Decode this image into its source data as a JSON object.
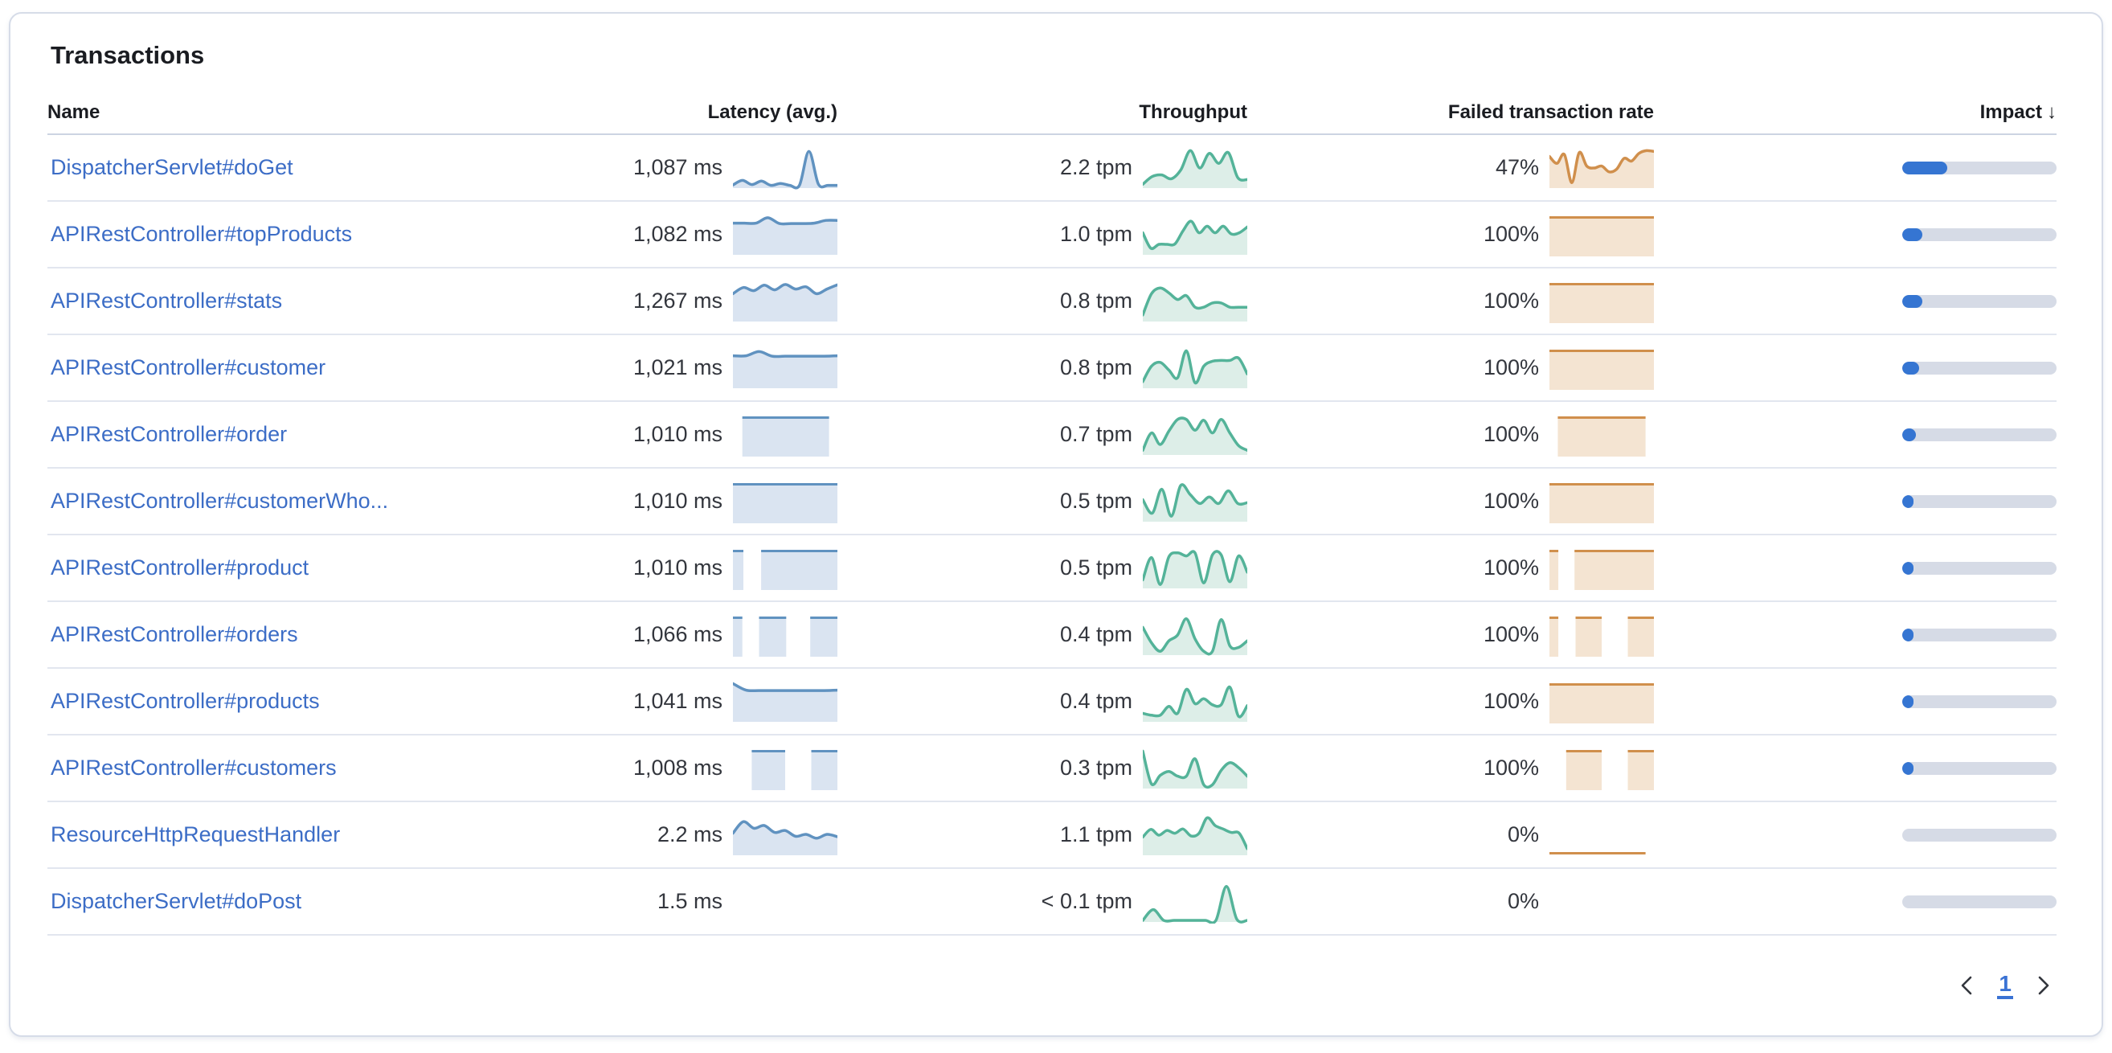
{
  "panel": {
    "title": "Transactions"
  },
  "table": {
    "columns": {
      "name": "Name",
      "latency": "Latency (avg.)",
      "throughput": "Throughput",
      "failed": "Failed transaction rate",
      "impact": "Impact"
    },
    "sort_icon": "↓",
    "sorted_by": "Impact",
    "rows": [
      {
        "name": "DispatcherServlet#doGet",
        "latency": "1,087 ms",
        "throughput": "2.2 tpm",
        "failed": "47%",
        "impact": 0.29,
        "latency_spark": {
          "type": "line",
          "points": [
            0.06,
            0.18,
            0.07,
            0.16,
            0.05,
            0.1,
            0.05,
            0.05,
            0.93,
            0.08,
            0.05,
            0.05
          ]
        },
        "throughput_spark": {
          "type": "line",
          "points": [
            0.08,
            0.28,
            0.32,
            0.22,
            0.45,
            0.95,
            0.5,
            0.88,
            0.62,
            0.9,
            0.25,
            0.2
          ]
        },
        "failed_spark": {
          "type": "line",
          "points": [
            0.8,
            0.62,
            0.85,
            0.12,
            0.9,
            0.55,
            0.5,
            0.55,
            0.4,
            0.47,
            0.75,
            0.68,
            0.88,
            0.95,
            0.93
          ]
        }
      },
      {
        "name": "APIRestController#topProducts",
        "latency": "1,082 ms",
        "throughput": "1.0 tpm",
        "failed": "100%",
        "impact": 0.13,
        "latency_spark": {
          "type": "line",
          "points": [
            0.8,
            0.8,
            0.8,
            0.94,
            0.79,
            0.79,
            0.79,
            0.8,
            0.87,
            0.87
          ]
        },
        "throughput_spark": {
          "type": "line",
          "points": [
            0.55,
            0.15,
            0.25,
            0.25,
            0.26,
            0.6,
            0.85,
            0.55,
            0.72,
            0.55,
            0.72,
            0.52,
            0.55,
            0.7
          ]
        },
        "failed_spark": {
          "type": "blocks",
          "segments": [
            [
              0,
              1
            ]
          ]
        }
      },
      {
        "name": "APIRestController#stats",
        "latency": "1,267 ms",
        "throughput": "0.8 tpm",
        "failed": "100%",
        "impact": 0.13,
        "latency_spark": {
          "type": "line",
          "points": [
            0.7,
            0.86,
            0.78,
            0.92,
            0.8,
            0.94,
            0.82,
            0.88,
            0.7,
            0.82,
            0.93
          ]
        },
        "throughput_spark": {
          "type": "line",
          "points": [
            0.15,
            0.7,
            0.85,
            0.72,
            0.55,
            0.65,
            0.35,
            0.35,
            0.46,
            0.46,
            0.35,
            0.35,
            0.35
          ]
        },
        "failed_spark": {
          "type": "blocks",
          "segments": [
            [
              0,
              1
            ]
          ]
        }
      },
      {
        "name": "APIRestController#customer",
        "latency": "1,021 ms",
        "throughput": "0.8 tpm",
        "failed": "100%",
        "impact": 0.11,
        "latency_spark": {
          "type": "line",
          "points": [
            0.82,
            0.82,
            0.93,
            0.81,
            0.81,
            0.81,
            0.81,
            0.81,
            0.82
          ]
        },
        "throughput_spark": {
          "type": "line",
          "points": [
            0.15,
            0.55,
            0.65,
            0.45,
            0.25,
            0.95,
            0.12,
            0.55,
            0.68,
            0.7,
            0.7,
            0.76,
            0.35
          ]
        },
        "failed_spark": {
          "type": "blocks",
          "segments": [
            [
              0,
              1
            ]
          ]
        }
      },
      {
        "name": "APIRestController#order",
        "latency": "1,010 ms",
        "throughput": "0.7 tpm",
        "failed": "100%",
        "impact": 0.09,
        "latency_spark": {
          "type": "blocks",
          "segments": [
            [
              0.09,
              0.92
            ]
          ]
        },
        "throughput_spark": {
          "type": "line",
          "points": [
            0.1,
            0.55,
            0.25,
            0.6,
            0.9,
            0.9,
            0.62,
            0.88,
            0.55,
            0.9,
            0.55,
            0.22,
            0.1
          ]
        },
        "failed_spark": {
          "type": "blocks",
          "segments": [
            [
              0.08,
              0.92
            ]
          ]
        }
      },
      {
        "name": "APIRestController#customerWho...",
        "latency": "1,010 ms",
        "throughput": "0.5 tpm",
        "failed": "100%",
        "impact": 0.07,
        "latency_spark": {
          "type": "blocks",
          "segments": [
            [
              0,
              1
            ]
          ]
        },
        "throughput_spark": {
          "type": "line",
          "points": [
            0.55,
            0.2,
            0.82,
            0.12,
            0.92,
            0.68,
            0.45,
            0.62,
            0.45,
            0.78,
            0.45,
            0.47
          ]
        },
        "failed_spark": {
          "type": "blocks",
          "segments": [
            [
              0,
              1
            ]
          ]
        }
      },
      {
        "name": "APIRestController#product",
        "latency": "1,010 ms",
        "throughput": "0.5 tpm",
        "failed": "100%",
        "impact": 0.07,
        "latency_spark": {
          "type": "blocks",
          "segments": [
            [
              0,
              0.1
            ],
            [
              0.27,
              1
            ]
          ]
        },
        "throughput_spark": {
          "type": "line",
          "points": [
            0.2,
            0.78,
            0.08,
            0.8,
            0.9,
            0.82,
            0.9,
            0.12,
            0.85,
            0.85,
            0.15,
            0.82,
            0.4
          ]
        },
        "failed_spark": {
          "type": "blocks",
          "segments": [
            [
              0,
              0.085
            ],
            [
              0.24,
              1
            ]
          ]
        }
      },
      {
        "name": "APIRestController#orders",
        "latency": "1,066 ms",
        "throughput": "0.4 tpm",
        "failed": "100%",
        "impact": 0.07,
        "latency_spark": {
          "type": "blocks",
          "segments": [
            [
              0,
              0.09
            ],
            [
              0.25,
              0.51
            ],
            [
              0.74,
              1
            ]
          ]
        },
        "throughput_spark": {
          "type": "line",
          "points": [
            0.7,
            0.3,
            0.08,
            0.35,
            0.5,
            0.92,
            0.4,
            0.08,
            0.08,
            0.9,
            0.22,
            0.18,
            0.35
          ]
        },
        "failed_spark": {
          "type": "blocks",
          "segments": [
            [
              0,
              0.085
            ],
            [
              0.25,
              0.5
            ],
            [
              0.75,
              1
            ]
          ]
        }
      },
      {
        "name": "APIRestController#products",
        "latency": "1,041 ms",
        "throughput": "0.4 tpm",
        "failed": "100%",
        "impact": 0.06,
        "latency_spark": {
          "type": "line",
          "points": [
            0.97,
            0.8,
            0.79,
            0.79,
            0.79,
            0.79,
            0.79,
            0.79,
            0.8
          ]
        },
        "throughput_spark": {
          "type": "line",
          "points": [
            0.2,
            0.15,
            0.15,
            0.38,
            0.2,
            0.82,
            0.45,
            0.58,
            0.42,
            0.42,
            0.88,
            0.12,
            0.4
          ]
        },
        "failed_spark": {
          "type": "blocks",
          "segments": [
            [
              0,
              1
            ]
          ]
        }
      },
      {
        "name": "APIRestController#customers",
        "latency": "1,008 ms",
        "throughput": "0.3 tpm",
        "failed": "100%",
        "impact": 0.05,
        "latency_spark": {
          "type": "blocks",
          "segments": [
            [
              0.18,
              0.5
            ],
            [
              0.75,
              1
            ]
          ]
        },
        "throughput_spark": {
          "type": "line",
          "points": [
            0.95,
            0.1,
            0.32,
            0.42,
            0.3,
            0.3,
            0.75,
            0.08,
            0.08,
            0.45,
            0.65,
            0.52,
            0.3
          ]
        },
        "failed_spark": {
          "type": "blocks",
          "segments": [
            [
              0.16,
              0.5
            ],
            [
              0.75,
              1
            ]
          ]
        }
      },
      {
        "name": "ResourceHttpRequestHandler",
        "latency": "2.2 ms",
        "throughput": "1.1 tpm",
        "failed": "0%",
        "impact": 0,
        "latency_spark": {
          "type": "line",
          "points": [
            0.55,
            0.85,
            0.68,
            0.75,
            0.57,
            0.62,
            0.47,
            0.52,
            0.42,
            0.52,
            0.46
          ]
        },
        "throughput_spark": {
          "type": "line",
          "points": [
            0.45,
            0.65,
            0.5,
            0.62,
            0.55,
            0.66,
            0.48,
            0.55,
            0.95,
            0.75,
            0.66,
            0.57,
            0.55,
            0.15
          ]
        },
        "failed_spark": {
          "type": "flatline",
          "x0": 0,
          "x1": 0.92
        }
      },
      {
        "name": "DispatcherServlet#doPost",
        "latency": "1.5 ms",
        "throughput": "< 0.1 tpm",
        "failed": "0%",
        "impact": 0,
        "latency_spark": {
          "type": "none"
        },
        "throughput_spark": {
          "type": "line",
          "points": [
            0.02,
            0.3,
            0.02,
            0.02,
            0.02,
            0.02,
            0.02,
            0.02,
            0.9,
            0.05,
            0.02
          ]
        },
        "failed_spark": {
          "type": "none"
        }
      }
    ]
  },
  "pagination": {
    "prev_icon": "chevron-left",
    "page": "1",
    "next_icon": "chevron-right"
  },
  "colors": {
    "link": "#3c6dc6",
    "heading": "#1a1c21",
    "text": "#33363d",
    "latency_line": "#6092c0",
    "latency_fill": "#dae4f1",
    "throughput_line": "#54b399",
    "throughput_fill": "#ddeee8",
    "failed_line": "#d08f4c",
    "failed_fill": "#f4e4d2",
    "impact_bar": "#3575d2",
    "impact_track": "#d6dbe6",
    "divider": "#e2e6ef",
    "page_number": "#3a72d4"
  }
}
